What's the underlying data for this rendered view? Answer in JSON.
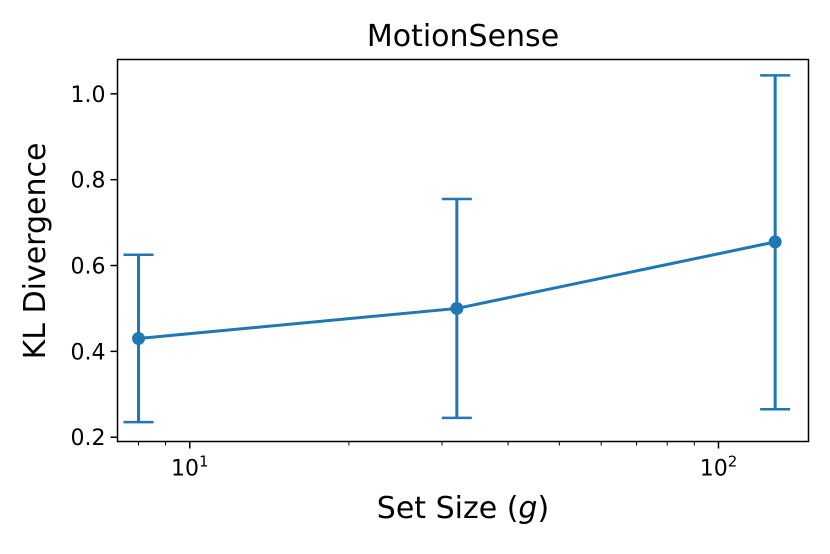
{
  "chart_data": {
    "type": "line",
    "title": "MotionSense",
    "xlabel": {
      "prefix": "Set Size (",
      "var": "g",
      "suffix": ")"
    },
    "ylabel": "KL Divergence",
    "x_scale": "log",
    "xlim": [
      7.3,
      148
    ],
    "ylim": [
      0.19,
      1.08
    ],
    "x_ticks": [
      {
        "value": 10,
        "base": "10",
        "exp": "1"
      },
      {
        "value": 100,
        "base": "10",
        "exp": "2"
      }
    ],
    "y_ticks": [
      {
        "value": 0.2,
        "label": "0.2"
      },
      {
        "value": 0.4,
        "label": "0.4"
      },
      {
        "value": 0.6,
        "label": "0.6"
      },
      {
        "value": 0.8,
        "label": "0.8"
      },
      {
        "value": 1.0,
        "label": "1.0"
      }
    ],
    "series": [
      {
        "color": "#1f77b4",
        "points": [
          {
            "x": 8,
            "y": 0.43,
            "err_low": 0.235,
            "err_high": 0.625
          },
          {
            "x": 32,
            "y": 0.5,
            "err_low": 0.245,
            "err_high": 0.755
          },
          {
            "x": 128,
            "y": 0.655,
            "err_low": 0.265,
            "err_high": 1.043
          }
        ]
      }
    ],
    "grid": false,
    "legend": "none"
  }
}
